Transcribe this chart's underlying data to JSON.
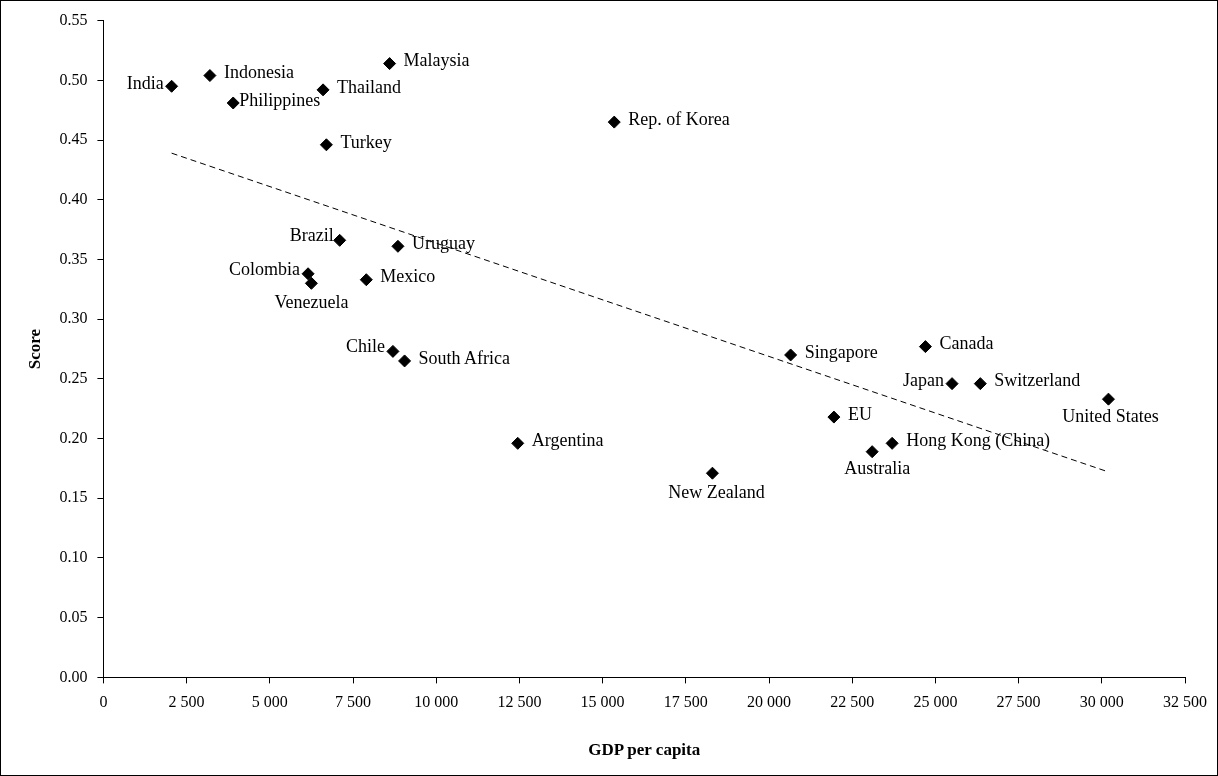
{
  "chart_data": {
    "type": "scatter",
    "xlabel": "GDP per capita",
    "ylabel": "Score",
    "xlim": [
      0,
      32500
    ],
    "xticks": [
      {
        "value": 0,
        "label": "0"
      },
      {
        "value": 2500,
        "label": "2 500"
      },
      {
        "value": 5000,
        "label": "5 000"
      },
      {
        "value": 7500,
        "label": "7 500"
      },
      {
        "value": 10000,
        "label": "10 000"
      },
      {
        "value": 12500,
        "label": "12 500"
      },
      {
        "value": 15000,
        "label": "15 000"
      },
      {
        "value": 17500,
        "label": "17 500"
      },
      {
        "value": 20000,
        "label": "20 000"
      },
      {
        "value": 22500,
        "label": "22 500"
      },
      {
        "value": 25000,
        "label": "25 000"
      },
      {
        "value": 27500,
        "label": "27 500"
      },
      {
        "value": 30000,
        "label": "30 000"
      },
      {
        "value": 32500,
        "label": "32 500"
      }
    ],
    "ylim": [
      0,
      0.55
    ],
    "yticks": [
      {
        "value": 0,
        "label": "0.00"
      },
      {
        "value": 0.05,
        "label": "0.05"
      },
      {
        "value": 0.1,
        "label": "0.10"
      },
      {
        "value": 0.15,
        "label": "0.15"
      },
      {
        "value": 0.2,
        "label": "0.20"
      },
      {
        "value": 0.25,
        "label": "0.25"
      },
      {
        "value": 0.3,
        "label": "0.30"
      },
      {
        "value": 0.35,
        "label": "0.35"
      },
      {
        "value": 0.4,
        "label": "0.40"
      },
      {
        "value": 0.45,
        "label": "0.45"
      },
      {
        "value": 0.5,
        "label": "0.50"
      },
      {
        "value": 0.55,
        "label": "0.55"
      }
    ],
    "grid": false,
    "legend": false,
    "marker": "diamond",
    "series": [
      {
        "type": "scatter",
        "color": "#000000",
        "x": [
          2050,
          3200,
          3900,
          8600,
          6600,
          6700,
          15350,
          7100,
          8850,
          6150,
          6250,
          7900,
          8700,
          9050,
          12450,
          20650,
          24700,
          25500,
          26350,
          30200,
          21950,
          23700,
          23100,
          18300
        ],
        "values": [
          0.495,
          0.504,
          0.481,
          0.514,
          0.492,
          0.446,
          0.465,
          0.366,
          0.361,
          0.338,
          0.33,
          0.333,
          0.273,
          0.265,
          0.196,
          0.27,
          0.277,
          0.246,
          0.246,
          0.233,
          0.218,
          0.196,
          0.189,
          0.171
        ]
      },
      {
        "type": "line",
        "color": "#000000",
        "line_style": "dashed",
        "marker": "none",
        "x": [
          2050,
          30100
        ],
        "values": [
          0.439,
          0.173
        ]
      }
    ],
    "annotations": [
      {
        "text": "India",
        "x": 2050,
        "y": 0.495
      },
      {
        "text": "Indonesia",
        "x": 3200,
        "y": 0.504
      },
      {
        "text": "Philippines",
        "x": 3900,
        "y": 0.481
      },
      {
        "text": "Malaysia",
        "x": 8600,
        "y": 0.514
      },
      {
        "text": "Thailand",
        "x": 6600,
        "y": 0.492
      },
      {
        "text": "Turkey",
        "x": 6700,
        "y": 0.446
      },
      {
        "text": "Rep. of Korea",
        "x": 15350,
        "y": 0.465
      },
      {
        "text": "Brazil",
        "x": 7100,
        "y": 0.366
      },
      {
        "text": "Uruguay",
        "x": 8850,
        "y": 0.361
      },
      {
        "text": "Colombia",
        "x": 6150,
        "y": 0.338
      },
      {
        "text": "Venezuela",
        "x": 6250,
        "y": 0.33
      },
      {
        "text": "Mexico",
        "x": 7900,
        "y": 0.333
      },
      {
        "text": "Chile",
        "x": 8700,
        "y": 0.273
      },
      {
        "text": "South Africa",
        "x": 9050,
        "y": 0.265
      },
      {
        "text": "Argentina",
        "x": 12450,
        "y": 0.196
      },
      {
        "text": "Singapore",
        "x": 20650,
        "y": 0.27
      },
      {
        "text": "Canada",
        "x": 24700,
        "y": 0.277
      },
      {
        "text": "Japan",
        "x": 25500,
        "y": 0.246
      },
      {
        "text": "Switzerland",
        "x": 26350,
        "y": 0.246
      },
      {
        "text": "United States",
        "x": 30200,
        "y": 0.233
      },
      {
        "text": "EU",
        "x": 21950,
        "y": 0.218
      },
      {
        "text": "Hong Kong (China)",
        "x": 23700,
        "y": 0.196
      },
      {
        "text": "Australia",
        "x": 23100,
        "y": 0.189
      },
      {
        "text": "New Zealand",
        "x": 18300,
        "y": 0.171
      }
    ]
  }
}
